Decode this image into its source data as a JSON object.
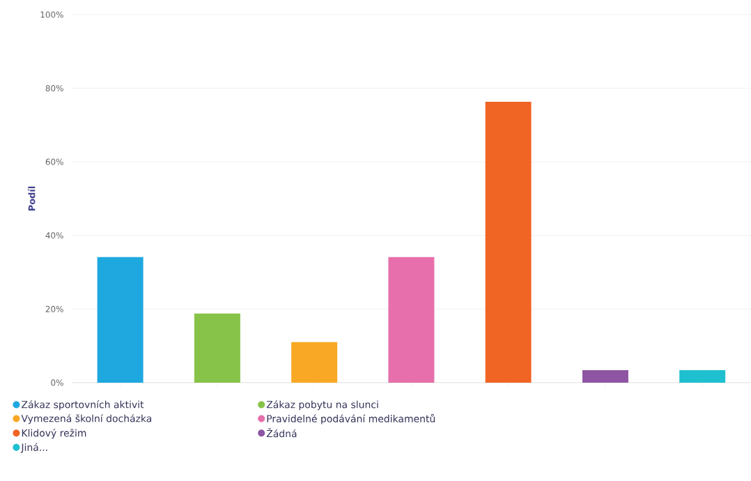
{
  "chart_data": {
    "type": "bar",
    "ylabel": "Podíl",
    "categories": [
      null,
      null,
      null,
      null,
      null,
      null,
      null
    ],
    "series": [
      {
        "name": "Zákaz sportovních aktivit",
        "color": "#1fa8e0",
        "values": [
          34.1,
          null,
          null,
          null,
          null,
          null,
          null
        ]
      },
      {
        "name": "Zákaz pobytu na slunci",
        "color": "#88c349",
        "values": [
          null,
          18.8,
          null,
          null,
          null,
          null,
          null
        ]
      },
      {
        "name": "Vymezená školní docházka",
        "color": "#f9a825",
        "values": [
          null,
          null,
          11.0,
          null,
          null,
          null,
          null
        ]
      },
      {
        "name": "Pravidelné podávání medikamentů",
        "color": "#e76fab",
        "values": [
          null,
          null,
          null,
          34.1,
          null,
          null,
          null
        ]
      },
      {
        "name": "Klidový režim",
        "color": "#f06424",
        "values": [
          null,
          null,
          null,
          null,
          76.3,
          null,
          null
        ]
      },
      {
        "name": "Žádná",
        "color": "#8e55a3",
        "values": [
          null,
          null,
          null,
          null,
          null,
          3.4,
          null
        ]
      },
      {
        "name": "Jiná...",
        "color": "#1ec0d0",
        "values": [
          null,
          null,
          null,
          null,
          null,
          null,
          3.4
        ]
      }
    ],
    "ylim": [
      0,
      100
    ],
    "yticks": [
      {
        "value": 0,
        "label": "0%"
      },
      {
        "value": 20,
        "label": "20%"
      },
      {
        "value": 40,
        "label": "40%"
      },
      {
        "value": 60,
        "label": "60%"
      },
      {
        "value": 80,
        "label": "80%"
      },
      {
        "value": 100,
        "label": "100%"
      }
    ],
    "grid": "y",
    "legend": "bottom",
    "tick_labels": "y"
  }
}
